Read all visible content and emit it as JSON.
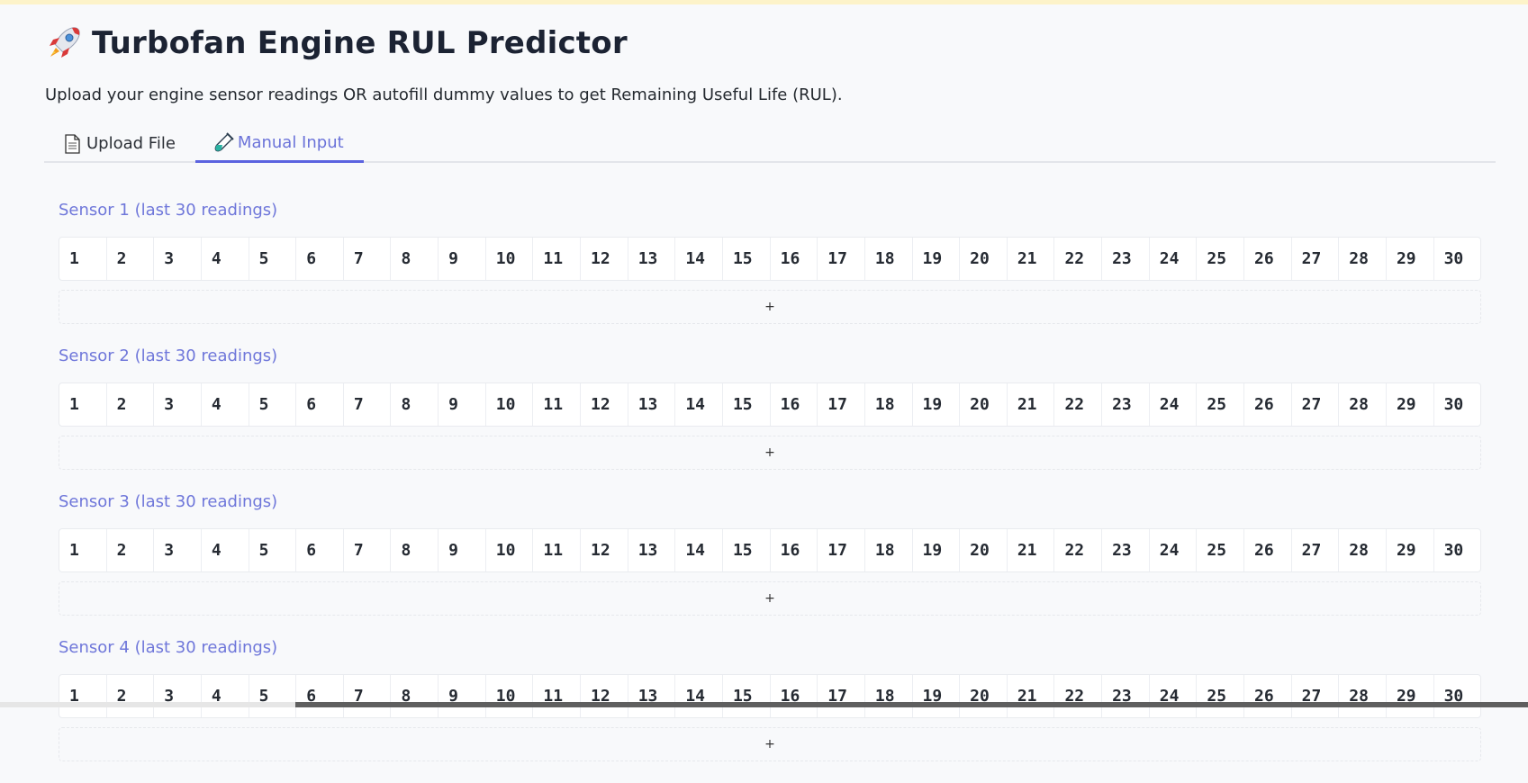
{
  "header": {
    "title": "Turbofan Engine RUL Predictor",
    "title_icon": "rocket-icon",
    "subtitle": "Upload your engine sensor readings OR autofill dummy values to get Remaining Useful Life (RUL)."
  },
  "tabs": [
    {
      "label": "Upload File",
      "icon": "document-icon",
      "active": false
    },
    {
      "label": "Manual Input",
      "icon": "test-tube-icon",
      "active": true
    }
  ],
  "sensors": [
    {
      "label": "Sensor 1 (last 30 readings)",
      "add_label": "+"
    },
    {
      "label": "Sensor 2 (last 30 readings)",
      "add_label": "+"
    },
    {
      "label": "Sensor 3 (last 30 readings)",
      "add_label": "+"
    },
    {
      "label": "Sensor 4 (last 30 readings)",
      "add_label": "+"
    }
  ],
  "readings": [
    "1",
    "2",
    "3",
    "4",
    "5",
    "6",
    "7",
    "8",
    "9",
    "10",
    "11",
    "12",
    "13",
    "14",
    "15",
    "16",
    "17",
    "18",
    "19",
    "20",
    "21",
    "22",
    "23",
    "24",
    "25",
    "26",
    "27",
    "28",
    "29",
    "30"
  ],
  "colors": {
    "accent": "#5b63e0",
    "label": "#6f77da",
    "background": "#f8f9fb",
    "top_strip": "#fdf3c9"
  }
}
